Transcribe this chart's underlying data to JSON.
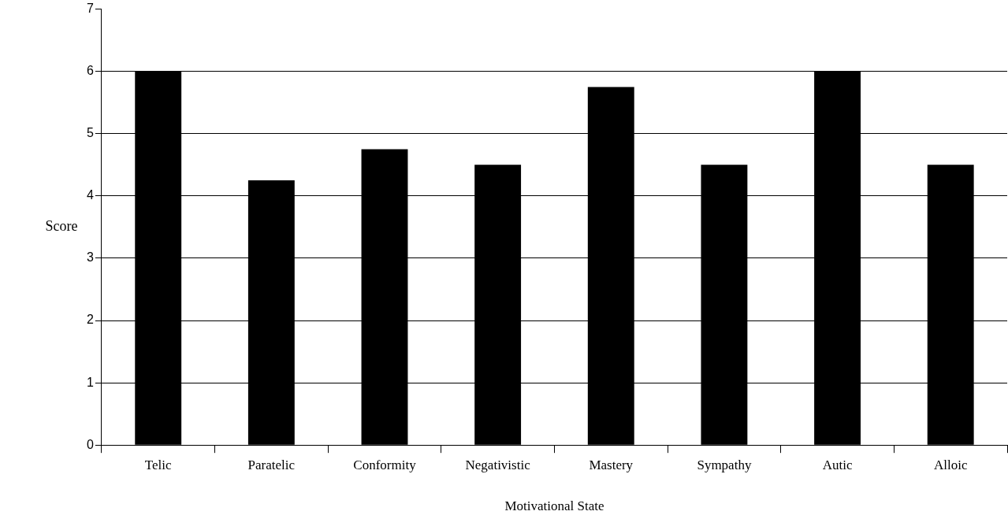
{
  "chart_data": {
    "type": "bar",
    "xlabel": "Motivational State",
    "ylabel": "Score",
    "categories": [
      "Telic",
      "Paratelic",
      "Conformity",
      "Negativistic",
      "Mastery",
      "Sympathy",
      "Autic",
      "Alloic"
    ],
    "values": [
      6,
      4.25,
      4.75,
      4.5,
      5.75,
      4.5,
      6,
      4.5
    ],
    "color": "#000000",
    "ylim": [
      0,
      7
    ],
    "yticks": [
      0,
      1,
      2,
      3,
      4,
      5,
      6,
      7
    ],
    "grid": "y",
    "legend": false
  }
}
